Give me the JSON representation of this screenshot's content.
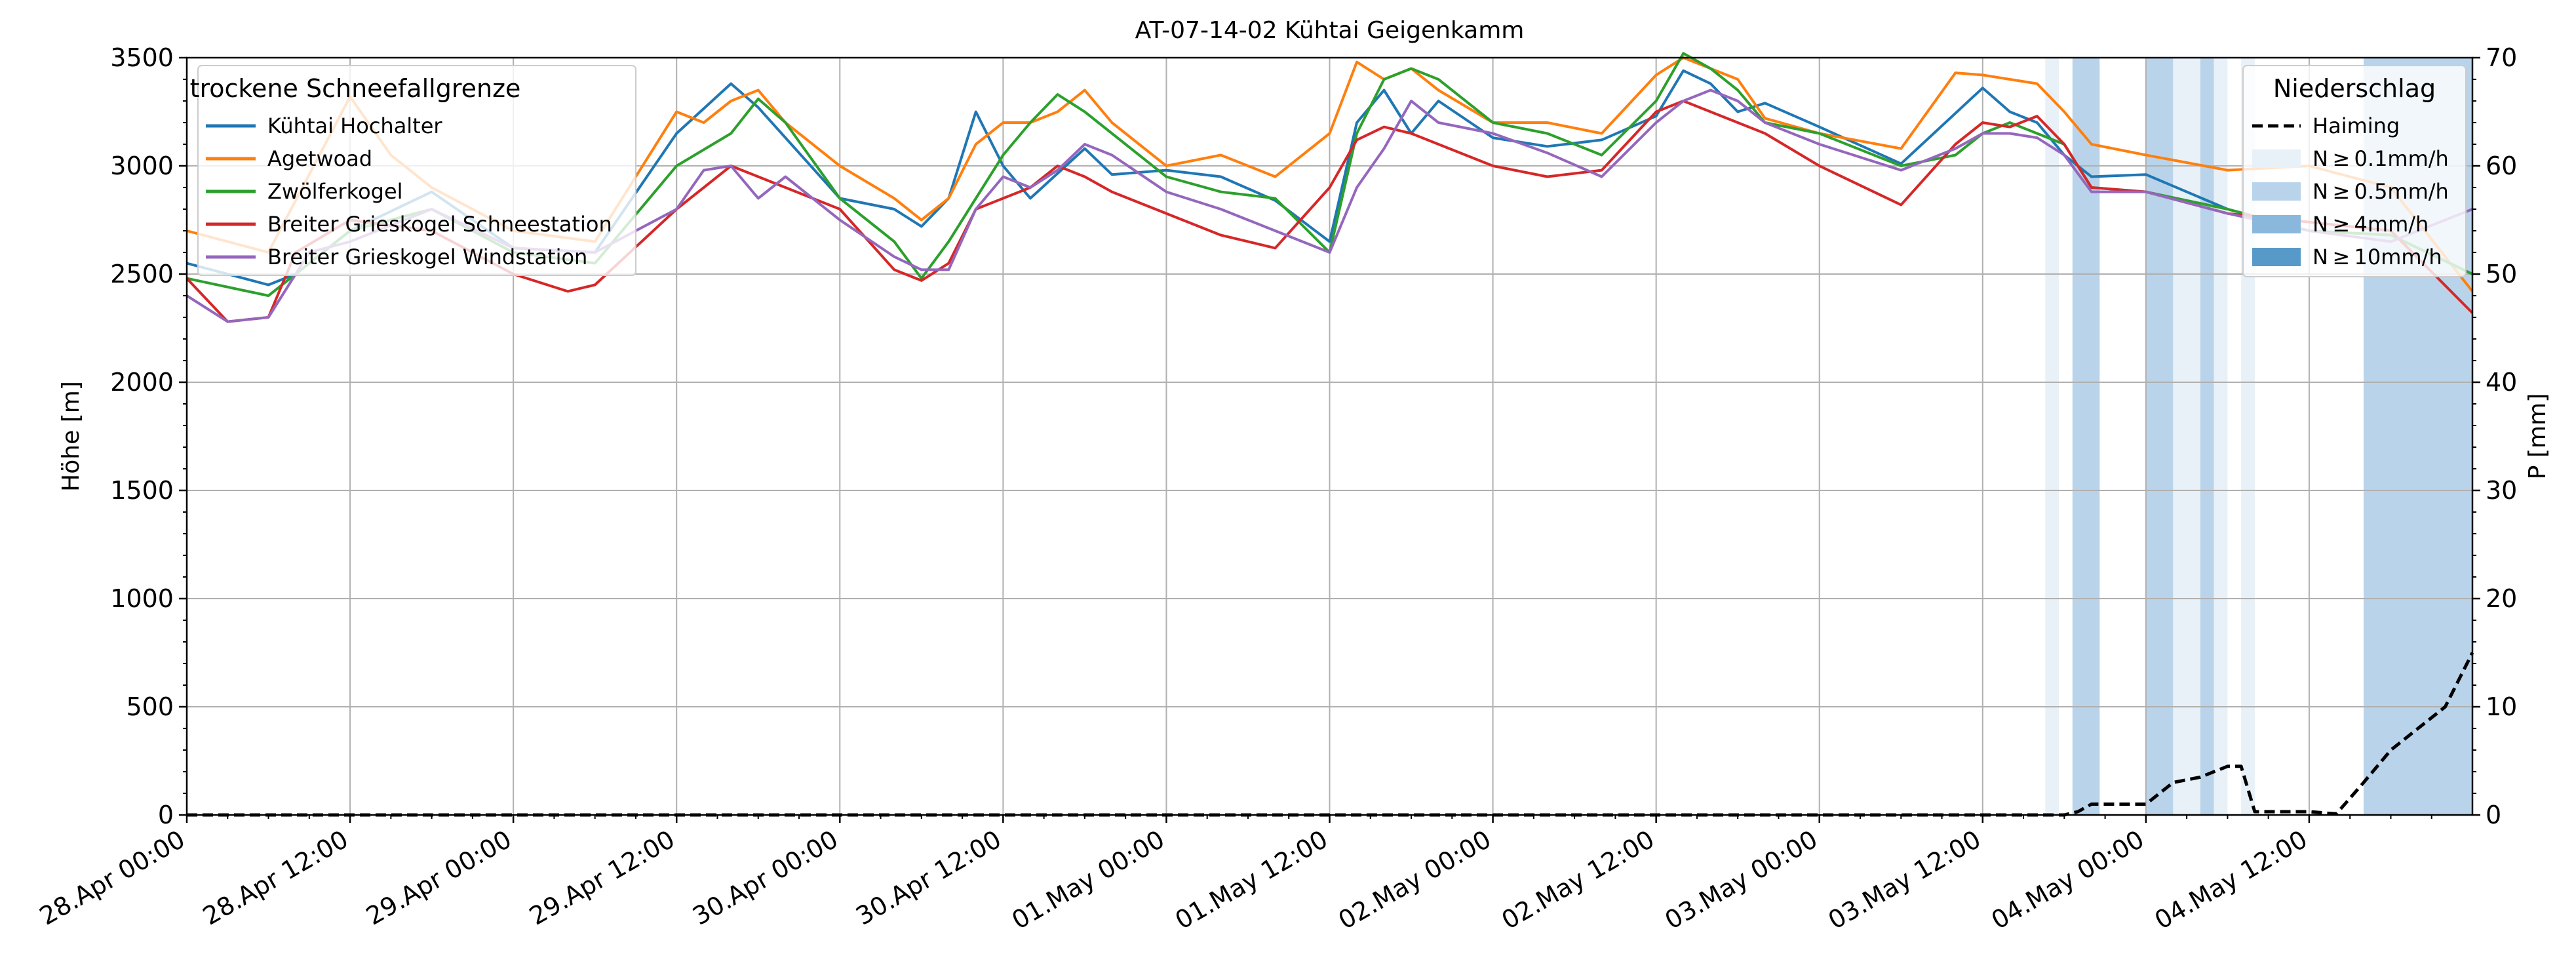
{
  "chart_data": {
    "type": "line",
    "title": "AT-07-14-02 Kühtai Geigenkamm",
    "ylabel": "Höhe [m]",
    "ylabel_right": "P [mm]",
    "xlim": [
      0,
      168
    ],
    "ylim": [
      0,
      3500
    ],
    "ylim_right": [
      0,
      70
    ],
    "yticks": [
      0,
      500,
      1000,
      1500,
      2000,
      2500,
      3000,
      3500
    ],
    "yticks_right": [
      0,
      10,
      20,
      30,
      40,
      50,
      60,
      70
    ],
    "xticks": [
      {
        "x": 0,
        "label": "28.Apr 00:00"
      },
      {
        "x": 12,
        "label": "28.Apr 12:00"
      },
      {
        "x": 24,
        "label": "29.Apr 00:00"
      },
      {
        "x": 36,
        "label": "29.Apr 12:00"
      },
      {
        "x": 48,
        "label": "30.Apr 00:00"
      },
      {
        "x": 60,
        "label": "30.Apr 12:00"
      },
      {
        "x": 72,
        "label": "01.May 00:00"
      },
      {
        "x": 84,
        "label": "01.May 12:00"
      },
      {
        "x": 96,
        "label": "02.May 00:00"
      },
      {
        "x": 108,
        "label": "02.May 12:00"
      },
      {
        "x": 120,
        "label": "03.May 00:00"
      },
      {
        "x": 132,
        "label": "03.May 12:00"
      },
      {
        "x": 144,
        "label": "04.May 00:00"
      },
      {
        "x": 156,
        "label": "04.May 12:00"
      }
    ],
    "grid": true,
    "legend_left": {
      "title": "trockene Schneefallgrenze",
      "placement": "top-left",
      "entries": [
        {
          "label": "Kühtai Hochalter",
          "color": "#1f77b4"
        },
        {
          "label": "Agetwoad",
          "color": "#ff7f0e"
        },
        {
          "label": "Zwölferkogel",
          "color": "#2ca02c"
        },
        {
          "label": "Breiter Grieskogel Schneestation",
          "color": "#d62728"
        },
        {
          "label": "Breiter Grieskogel Windstation",
          "color": "#9467bd"
        }
      ]
    },
    "legend_right": {
      "title": "Niederschlag",
      "placement": "top-right",
      "entries": [
        {
          "label": "Haiming",
          "kind": "line",
          "color": "#000000"
        },
        {
          "label": "N ≥ 0.1mm/h",
          "kind": "patch",
          "color": "#e8f0f8"
        },
        {
          "label": "N ≥ 0.5mm/h",
          "kind": "patch",
          "color": "#b9d4ea"
        },
        {
          "label": "N ≥ 4mm/h",
          "kind": "patch",
          "color": "#8ab8dc"
        },
        {
          "label": "N ≥ 10mm/h",
          "kind": "patch",
          "color": "#5799c8"
        }
      ]
    },
    "series": [
      {
        "name": "Kühtai Hochalter",
        "color": "#1f77b4",
        "x": [
          0,
          6,
          8,
          12,
          18,
          24,
          30,
          36,
          40,
          42,
          48,
          52,
          54,
          56,
          58,
          60,
          62,
          66,
          68,
          72,
          76,
          80,
          84,
          86,
          88,
          90,
          92,
          96,
          100,
          104,
          108,
          110,
          112,
          114,
          116,
          120,
          126,
          132,
          134,
          136,
          138,
          140,
          144,
          150,
          156,
          162,
          168
        ],
        "y": [
          2550,
          2450,
          2500,
          2700,
          2880,
          2620,
          2600,
          3150,
          3380,
          3270,
          2850,
          2800,
          2720,
          2850,
          3250,
          3000,
          2850,
          3080,
          2960,
          2980,
          2950,
          2840,
          2650,
          3200,
          3350,
          3150,
          3300,
          3130,
          3090,
          3120,
          3230,
          3440,
          3380,
          3250,
          3290,
          3180,
          3010,
          3360,
          3250,
          3200,
          3050,
          2950,
          2960,
          2800,
          2700,
          2680,
          2500
        ]
      },
      {
        "name": "Agetwoad",
        "color": "#ff7f0e",
        "x": [
          0,
          6,
          12,
          15,
          18,
          24,
          30,
          36,
          38,
          40,
          42,
          44,
          48,
          52,
          54,
          56,
          58,
          60,
          62,
          64,
          66,
          68,
          72,
          76,
          80,
          84,
          86,
          88,
          90,
          92,
          96,
          100,
          104,
          108,
          110,
          112,
          114,
          116,
          120,
          126,
          130,
          132,
          134,
          136,
          138,
          140,
          144,
          150,
          156,
          162,
          168
        ],
        "y": [
          2700,
          2600,
          3320,
          3050,
          2900,
          2700,
          2650,
          3250,
          3200,
          3300,
          3350,
          3200,
          3000,
          2850,
          2750,
          2850,
          3100,
          3200,
          3200,
          3250,
          3350,
          3200,
          3000,
          3050,
          2950,
          3150,
          3480,
          3400,
          3450,
          3350,
          3200,
          3200,
          3150,
          3420,
          3500,
          3450,
          3400,
          3220,
          3150,
          3080,
          3430,
          3420,
          3400,
          3380,
          3250,
          3100,
          3050,
          2980,
          3000,
          2900,
          2420
        ]
      },
      {
        "name": "Zwölferkogel",
        "color": "#2ca02c",
        "x": [
          0,
          6,
          12,
          18,
          24,
          30,
          36,
          40,
          42,
          44,
          48,
          52,
          54,
          56,
          58,
          60,
          62,
          64,
          66,
          68,
          72,
          76,
          80,
          84,
          86,
          88,
          90,
          92,
          96,
          100,
          104,
          108,
          110,
          112,
          114,
          116,
          120,
          126,
          130,
          132,
          134,
          136,
          138,
          140,
          144,
          150,
          156,
          162,
          168
        ],
        "y": [
          2480,
          2400,
          2700,
          2800,
          2600,
          2550,
          3000,
          3150,
          3310,
          3200,
          2850,
          2650,
          2480,
          2650,
          2850,
          3050,
          3200,
          3330,
          3250,
          3150,
          2950,
          2880,
          2850,
          2600,
          3150,
          3400,
          3450,
          3400,
          3200,
          3150,
          3050,
          3300,
          3520,
          3450,
          3350,
          3200,
          3150,
          3000,
          3050,
          3150,
          3200,
          3150,
          3100,
          2900,
          2880,
          2800,
          2700,
          2680,
          2500
        ]
      },
      {
        "name": "Breiter Grieskogel Schneestation",
        "color": "#d62728",
        "x": [
          0,
          3,
          6,
          8,
          12,
          18,
          24,
          28,
          30,
          36,
          40,
          42,
          44,
          48,
          52,
          54,
          56,
          58,
          60,
          62,
          64,
          66,
          68,
          72,
          76,
          80,
          84,
          86,
          88,
          90,
          92,
          96,
          100,
          104,
          108,
          110,
          112,
          114,
          116,
          120,
          126,
          130,
          132,
          134,
          136,
          138,
          140,
          144,
          150,
          156,
          162,
          168
        ],
        "y": [
          2480,
          2280,
          2300,
          2600,
          2750,
          2700,
          2500,
          2420,
          2450,
          2800,
          3000,
          2950,
          2900,
          2800,
          2520,
          2470,
          2550,
          2800,
          2850,
          2900,
          3000,
          2950,
          2880,
          2780,
          2680,
          2620,
          2900,
          3120,
          3180,
          3150,
          3100,
          3000,
          2950,
          2980,
          3250,
          3300,
          3250,
          3200,
          3150,
          3000,
          2820,
          3100,
          3200,
          3180,
          3230,
          3100,
          2900,
          2880,
          2780,
          2740,
          2700,
          2320
        ]
      },
      {
        "name": "Breiter Grieskogel Windstation",
        "color": "#9467bd",
        "x": [
          0,
          3,
          6,
          9,
          12,
          18,
          24,
          30,
          36,
          38,
          40,
          42,
          44,
          48,
          52,
          54,
          56,
          58,
          60,
          62,
          64,
          66,
          68,
          72,
          76,
          80,
          84,
          86,
          88,
          90,
          92,
          96,
          100,
          104,
          108,
          110,
          112,
          114,
          116,
          120,
          126,
          130,
          132,
          134,
          136,
          138,
          140,
          144,
          150,
          156,
          162,
          168
        ],
        "y": [
          2400,
          2280,
          2300,
          2600,
          2650,
          2800,
          2620,
          2600,
          2800,
          2980,
          3000,
          2850,
          2950,
          2750,
          2580,
          2520,
          2520,
          2800,
          2950,
          2900,
          2980,
          3100,
          3050,
          2880,
          2800,
          2700,
          2600,
          2900,
          3080,
          3300,
          3200,
          3150,
          3060,
          2950,
          3200,
          3300,
          3350,
          3300,
          3200,
          3100,
          2980,
          3080,
          3150,
          3150,
          3130,
          3050,
          2880,
          2880,
          2780,
          2700,
          2650,
          2800
        ]
      },
      {
        "name": "Haiming",
        "color": "#000000",
        "axis": "right",
        "dashed": true,
        "x": [
          0,
          138,
          139,
          140,
          142,
          144,
          146,
          148,
          150,
          151,
          152,
          154,
          156,
          158,
          160,
          162,
          164,
          166,
          168
        ],
        "y": [
          0,
          0,
          0.3,
          1,
          1,
          1,
          3,
          3.5,
          4.5,
          4.5,
          0.3,
          0.3,
          0.3,
          0.1,
          3,
          6,
          8,
          10,
          15
        ]
      }
    ],
    "precip_bands": [
      {
        "x0": 136.6,
        "x1": 137.6,
        "level": 0
      },
      {
        "x0": 138.6,
        "x1": 139.6,
        "level": 1
      },
      {
        "x0": 139.6,
        "x1": 140.6,
        "level": 1
      },
      {
        "x0": 144,
        "x1": 146,
        "level": 1
      },
      {
        "x0": 146,
        "x1": 148,
        "level": 0
      },
      {
        "x0": 148,
        "x1": 149,
        "level": 1
      },
      {
        "x0": 149,
        "x1": 150,
        "level": 0
      },
      {
        "x0": 151,
        "x1": 152,
        "level": 0
      },
      {
        "x0": 160,
        "x1": 168,
        "level": 1
      }
    ]
  }
}
